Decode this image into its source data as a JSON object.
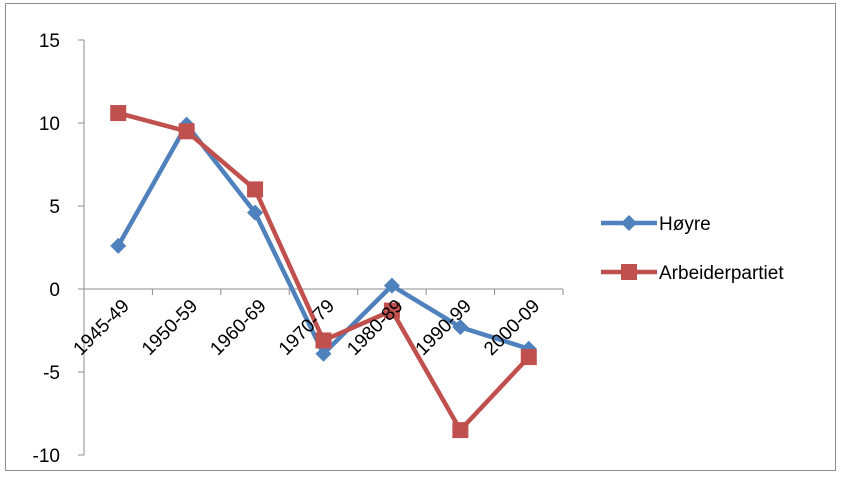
{
  "chart_data": {
    "type": "line",
    "categories": [
      "1945-49",
      "1950-59",
      "1960-69",
      "1970-79",
      "1980-89",
      "1990-99",
      "2000-09"
    ],
    "series": [
      {
        "name": "Høyre",
        "values": [
          2.6,
          9.9,
          4.6,
          -3.9,
          0.2,
          -2.3,
          -3.6
        ],
        "color": "#4F81BD",
        "marker": "diamond"
      },
      {
        "name": "Arbeiderpartiet",
        "values": [
          10.6,
          9.5,
          6.0,
          -3.1,
          -1.3,
          -8.5,
          -4.1
        ],
        "color": "#C0504D",
        "marker": "square"
      }
    ],
    "yticks": [
      15,
      10,
      5,
      0,
      -5,
      -10
    ],
    "ylim": [
      -10,
      15
    ],
    "grid": false,
    "legend": "right",
    "title": "",
    "xlabel": "",
    "ylabel": ""
  }
}
